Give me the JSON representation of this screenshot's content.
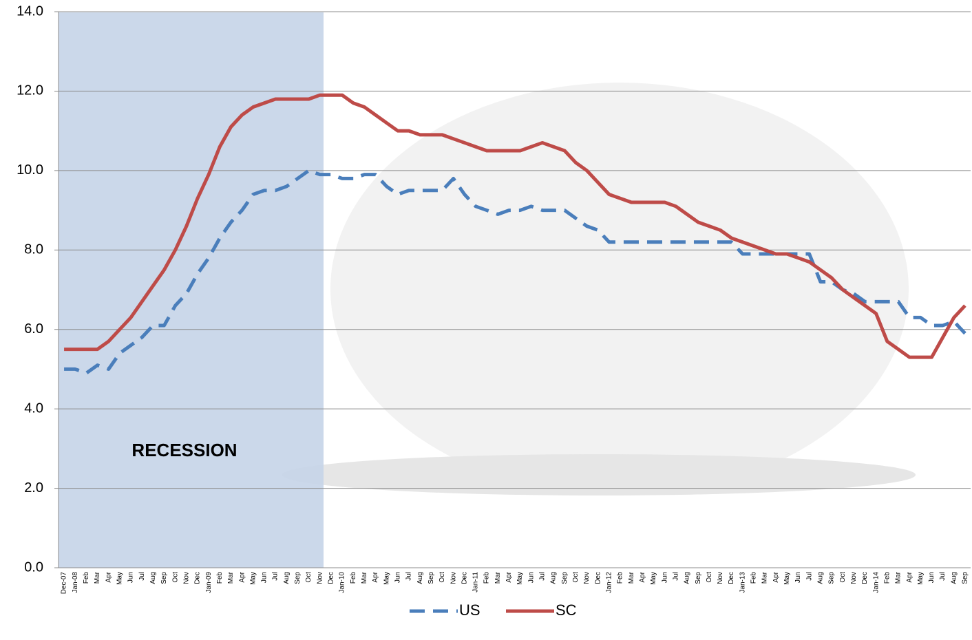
{
  "chart_data": {
    "type": "line",
    "categories": [
      "Dec-07",
      "Jan-08",
      "Feb",
      "Mar",
      "Apr",
      "May",
      "Jun",
      "Jul",
      "Aug",
      "Sep",
      "Oct",
      "Nov",
      "Dec",
      "Jan-09",
      "Feb",
      "Mar",
      "Apr",
      "May",
      "Jun",
      "Jul",
      "Aug",
      "Sep",
      "Oct",
      "Nov",
      "Dec",
      "Jan-10",
      "Feb",
      "Mar",
      "Apr",
      "May",
      "Jun",
      "Jul",
      "Aug",
      "Sep",
      "Oct",
      "Nov",
      "Dec",
      "Jan-11",
      "Feb",
      "Mar",
      "Apr",
      "May",
      "Jun",
      "Jul",
      "Aug",
      "Sep",
      "Oct",
      "Nov",
      "Dec",
      "Jan-12",
      "Feb",
      "Mar",
      "Apr",
      "May",
      "Jun",
      "Jul",
      "Aug",
      "Sep",
      "Oct",
      "Nov",
      "Dec",
      "Jan-13",
      "Feb",
      "Mar",
      "Apr",
      "May",
      "Jun",
      "Jul",
      "Aug",
      "Sep",
      "Oct",
      "Nov",
      "Dec",
      "Jan-14",
      "Feb",
      "Mar",
      "Apr",
      "May",
      "Jun",
      "Jul",
      "Aug",
      "Sep"
    ],
    "series": [
      {
        "name": "US",
        "color": "#4a7ebb",
        "dash": true,
        "values": [
          5.0,
          5.0,
          4.9,
          5.1,
          5.0,
          5.4,
          5.6,
          5.8,
          6.1,
          6.1,
          6.6,
          6.9,
          7.4,
          7.8,
          8.3,
          8.7,
          9.0,
          9.4,
          9.5,
          9.5,
          9.6,
          9.8,
          10.0,
          9.9,
          9.9,
          9.8,
          9.8,
          9.9,
          9.9,
          9.6,
          9.4,
          9.5,
          9.5,
          9.5,
          9.5,
          9.8,
          9.4,
          9.1,
          9.0,
          8.9,
          9.0,
          9.0,
          9.1,
          9.0,
          9.0,
          9.0,
          8.8,
          8.6,
          8.5,
          8.2,
          8.2,
          8.2,
          8.2,
          8.2,
          8.2,
          8.2,
          8.2,
          8.2,
          8.2,
          8.2,
          8.2,
          7.9,
          7.9,
          7.9,
          7.9,
          7.9,
          7.9,
          7.9,
          7.2,
          7.2,
          7.0,
          6.9,
          6.7,
          6.7,
          6.7,
          6.7,
          6.3,
          6.3,
          6.1,
          6.1,
          6.2,
          5.9
        ]
      },
      {
        "name": "SC",
        "color": "#be4b48",
        "dash": false,
        "values": [
          5.5,
          5.5,
          5.5,
          5.5,
          5.7,
          6.0,
          6.3,
          6.7,
          7.1,
          7.5,
          8.0,
          8.6,
          9.3,
          9.9,
          10.6,
          11.1,
          11.4,
          11.6,
          11.7,
          11.8,
          11.8,
          11.8,
          11.8,
          11.9,
          11.9,
          11.9,
          11.7,
          11.6,
          11.4,
          11.2,
          11.0,
          11.0,
          10.9,
          10.9,
          10.9,
          10.8,
          10.7,
          10.6,
          10.5,
          10.5,
          10.5,
          10.5,
          10.6,
          10.7,
          10.6,
          10.5,
          10.2,
          10.0,
          9.7,
          9.4,
          9.3,
          9.2,
          9.2,
          9.2,
          9.2,
          9.1,
          8.9,
          8.7,
          8.6,
          8.5,
          8.3,
          8.2,
          8.1,
          8.0,
          7.9,
          7.9,
          7.8,
          7.7,
          7.5,
          7.3,
          7.0,
          6.8,
          6.6,
          6.4,
          5.7,
          5.5,
          5.3,
          5.3,
          5.3,
          5.8,
          6.3,
          6.6
        ]
      }
    ],
    "ylim": [
      0,
      14
    ],
    "yticks": [
      {
        "value": 0,
        "label": "0.0"
      },
      {
        "value": 2,
        "label": "2.0"
      },
      {
        "value": 4,
        "label": "4.0"
      },
      {
        "value": 6,
        "label": "6.0"
      },
      {
        "value": 8,
        "label": "8.0"
      },
      {
        "value": 10,
        "label": "10.0"
      },
      {
        "value": 12,
        "label": "12.0"
      },
      {
        "value": 14,
        "label": "14.0"
      }
    ],
    "grid": true,
    "legend": "bottom",
    "annotations": [
      {
        "text": "RECESSION"
      }
    ]
  }
}
